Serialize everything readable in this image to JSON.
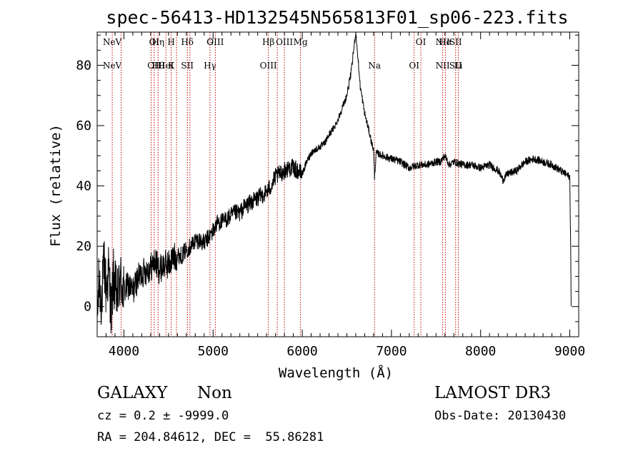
{
  "chart_data": {
    "type": "line",
    "title": "spec-56413-HD132545N565813F01_sp06-223.fits",
    "xlabel": "Wavelength (Å)",
    "ylabel": "Flux (relative)",
    "xlim": [
      3700,
      9100
    ],
    "ylim": [
      -10,
      91
    ],
    "x_ticks": [
      4000,
      5000,
      6000,
      7000,
      8000,
      9000
    ],
    "y_ticks": [
      0,
      20,
      40,
      60,
      80
    ],
    "grid": false,
    "series": [
      {
        "name": "flux",
        "anchors": [
          [
            3700,
            -5
          ],
          [
            3720,
            8
          ],
          [
            3750,
            2
          ],
          [
            3780,
            15
          ],
          [
            3800,
            5
          ],
          [
            3830,
            12
          ],
          [
            3860,
            -3
          ],
          [
            3880,
            10
          ],
          [
            3900,
            6
          ],
          [
            3930,
            3
          ],
          [
            3960,
            9
          ],
          [
            4000,
            5
          ],
          [
            4050,
            7
          ],
          [
            4100,
            5
          ],
          [
            4150,
            9
          ],
          [
            4200,
            11
          ],
          [
            4250,
            12
          ],
          [
            4300,
            13
          ],
          [
            4350,
            15
          ],
          [
            4400,
            12
          ],
          [
            4450,
            14
          ],
          [
            4500,
            14
          ],
          [
            4550,
            16
          ],
          [
            4600,
            17
          ],
          [
            4650,
            17
          ],
          [
            4700,
            19
          ],
          [
            4750,
            20
          ],
          [
            4800,
            22
          ],
          [
            4850,
            22
          ],
          [
            4900,
            21
          ],
          [
            4950,
            23
          ],
          [
            5000,
            25
          ],
          [
            5050,
            28
          ],
          [
            5100,
            28
          ],
          [
            5150,
            29
          ],
          [
            5200,
            30
          ],
          [
            5250,
            31
          ],
          [
            5300,
            31
          ],
          [
            5350,
            33
          ],
          [
            5400,
            34
          ],
          [
            5450,
            35
          ],
          [
            5500,
            36
          ],
          [
            5550,
            37
          ],
          [
            5600,
            38
          ],
          [
            5650,
            40
          ],
          [
            5700,
            43
          ],
          [
            5750,
            44
          ],
          [
            5800,
            45
          ],
          [
            5850,
            46
          ],
          [
            5900,
            46
          ],
          [
            5950,
            45
          ],
          [
            6000,
            44
          ],
          [
            6050,
            48
          ],
          [
            6100,
            51
          ],
          [
            6150,
            52
          ],
          [
            6200,
            53
          ],
          [
            6250,
            54
          ],
          [
            6300,
            57
          ],
          [
            6350,
            59
          ],
          [
            6400,
            62
          ],
          [
            6450,
            66
          ],
          [
            6500,
            70
          ],
          [
            6550,
            78
          ],
          [
            6580,
            86
          ],
          [
            6600,
            91
          ],
          [
            6620,
            84
          ],
          [
            6650,
            73
          ],
          [
            6700,
            64
          ],
          [
            6750,
            58
          ],
          [
            6780,
            54
          ],
          [
            6800,
            52
          ],
          [
            6810,
            43
          ],
          [
            6830,
            51
          ],
          [
            6900,
            50
          ],
          [
            7000,
            49
          ],
          [
            7100,
            48
          ],
          [
            7200,
            46
          ],
          [
            7300,
            47
          ],
          [
            7400,
            47
          ],
          [
            7500,
            48
          ],
          [
            7550,
            48
          ],
          [
            7600,
            50
          ],
          [
            7650,
            47
          ],
          [
            7700,
            48
          ],
          [
            7800,
            47
          ],
          [
            7900,
            47
          ],
          [
            8000,
            46
          ],
          [
            8100,
            47
          ],
          [
            8200,
            45
          ],
          [
            8250,
            42
          ],
          [
            8300,
            44
          ],
          [
            8400,
            45
          ],
          [
            8500,
            48
          ],
          [
            8600,
            49
          ],
          [
            8700,
            48
          ],
          [
            8800,
            47
          ],
          [
            8900,
            45
          ],
          [
            8950,
            44
          ],
          [
            9000,
            43
          ],
          [
            9010,
            20
          ],
          [
            9015,
            0
          ]
        ]
      }
    ],
    "line_markers": [
      {
        "wl": 3869,
        "top": "NeV",
        "bottom": "NeV"
      },
      {
        "wl": 3969,
        "top": "",
        "bottom": ""
      },
      {
        "wl": 4305,
        "top": "",
        "bottom": ""
      },
      {
        "wl": 4340,
        "top": "OI",
        "bottom": "OII"
      },
      {
        "wl": 4383,
        "top": "Hη",
        "bottom": "Hθ"
      },
      {
        "wl": 4471,
        "top": "",
        "bottom": "HeI"
      },
      {
        "wl": 4530,
        "top": "H",
        "bottom": "K"
      },
      {
        "wl": 4590,
        "top": "",
        "bottom": ""
      },
      {
        "wl": 4711,
        "top": "Hδ",
        "bottom": "SII"
      },
      {
        "wl": 4740,
        "top": "",
        "bottom": ""
      },
      {
        "wl": 4965,
        "top": "G",
        "bottom": "Hγ"
      },
      {
        "wl": 5025,
        "top": "OIII",
        "bottom": ""
      },
      {
        "wl": 5620,
        "top": "Hβ",
        "bottom": "OIII"
      },
      {
        "wl": 5720,
        "top": "",
        "bottom": ""
      },
      {
        "wl": 5800,
        "top": "OIII",
        "bottom": ""
      },
      {
        "wl": 5980,
        "top": "Mg",
        "bottom": ""
      },
      {
        "wl": 6810,
        "top": "",
        "bottom": "Na"
      },
      {
        "wl": 7255,
        "top": "",
        "bottom": "OI"
      },
      {
        "wl": 7330,
        "top": "OI",
        "bottom": ""
      },
      {
        "wl": 7575,
        "top": "NII",
        "bottom": "NII"
      },
      {
        "wl": 7605,
        "top": "Hα",
        "bottom": ""
      },
      {
        "wl": 7720,
        "top": "SII",
        "bottom": "SII"
      },
      {
        "wl": 7750,
        "top": "",
        "bottom": "Li"
      }
    ]
  },
  "info": {
    "object_class": "GALAXY",
    "object_subclass": "Non",
    "redshift": "cz = 0.2 ± -9999.0",
    "coords": "RA = 204.84612, DEC =  55.86281",
    "survey": "LAMOST DR3",
    "obs_date": "Obs-Date: 20130430"
  }
}
